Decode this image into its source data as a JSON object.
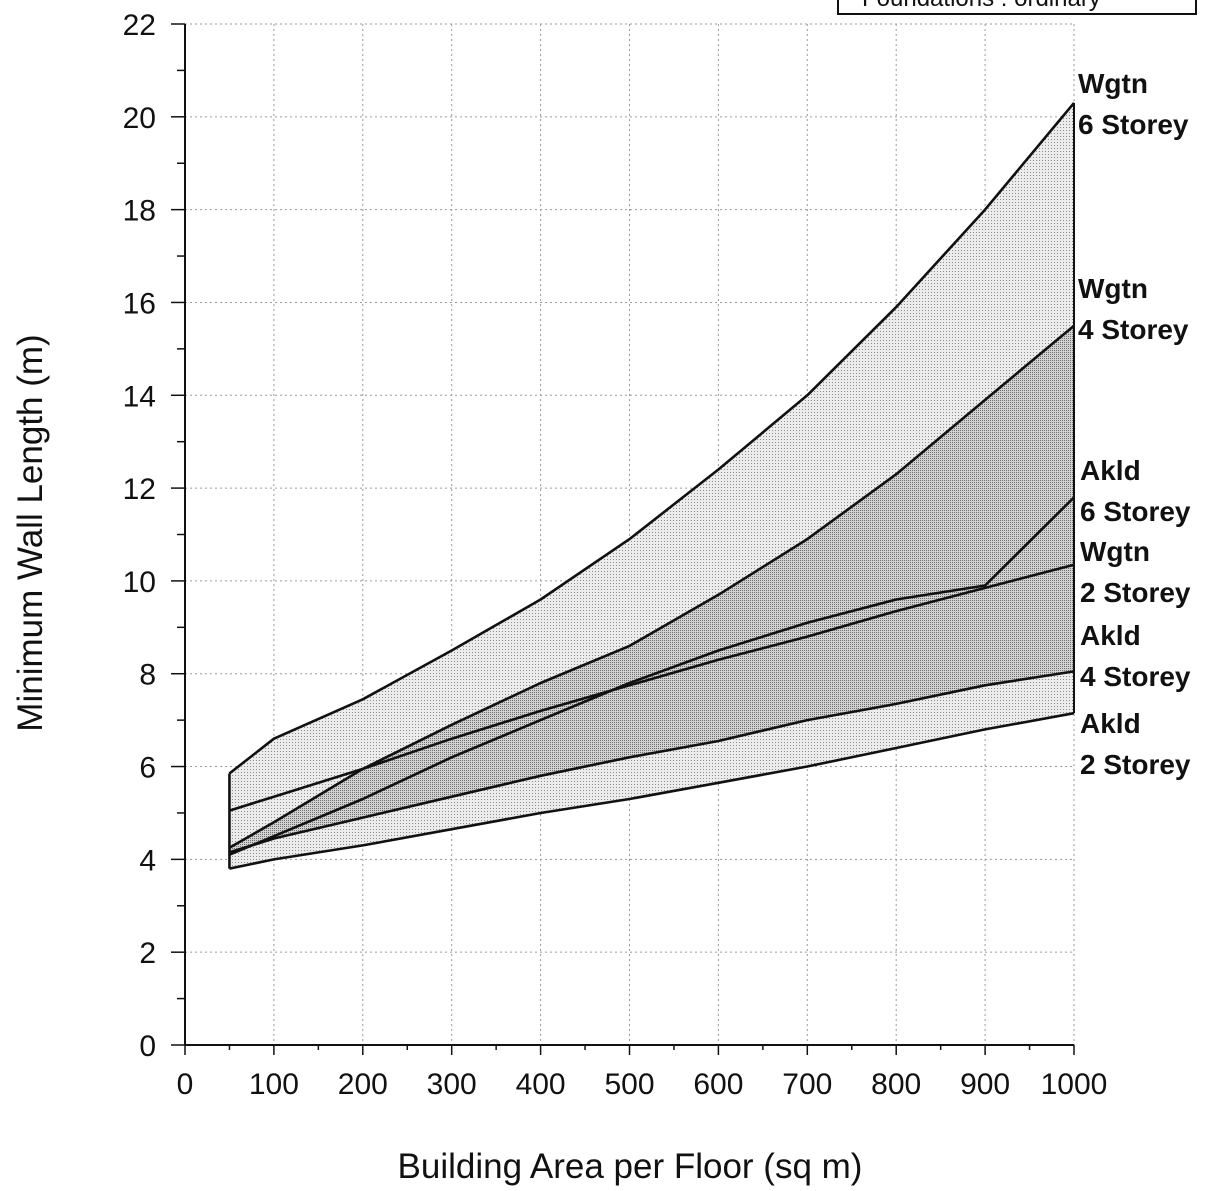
{
  "chart_data": {
    "type": "area",
    "title": "",
    "xlabel": "Building Area per Floor (sq m)",
    "ylabel": "Minimum Wall Length (m)",
    "xlim": [
      0,
      1000
    ],
    "ylim": [
      0,
      22
    ],
    "x_ticks": [
      "0",
      "100",
      "200",
      "300",
      "400",
      "500",
      "600",
      "700",
      "800",
      "900",
      "1000"
    ],
    "y_ticks": [
      "0",
      "2",
      "4",
      "6",
      "8",
      "10",
      "12",
      "14",
      "16",
      "18",
      "20",
      "22"
    ],
    "grid": true,
    "legend_box_text": "Foundations : ordinary",
    "x": [
      50,
      100,
      200,
      300,
      400,
      500,
      600,
      700,
      800,
      900,
      1000
    ],
    "series": [
      {
        "label_line1": "Wgtn",
        "label_line2": "6 Storey",
        "values": [
          5.85,
          6.6,
          7.45,
          8.5,
          9.6,
          10.9,
          12.4,
          14.0,
          15.9,
          18.0,
          20.3
        ]
      },
      {
        "label_line1": "Wgtn",
        "label_line2": "4 Storey",
        "values": [
          4.25,
          4.8,
          5.95,
          6.9,
          7.8,
          8.6,
          9.7,
          10.9,
          12.3,
          13.9,
          15.5
        ]
      },
      {
        "label_line1": "Akld",
        "label_line2": "6 Storey",
        "values": [
          4.1,
          4.5,
          5.3,
          6.2,
          7.0,
          7.8,
          8.5,
          9.1,
          9.6,
          9.9,
          11.8
        ]
      },
      {
        "label_line1": "Wgtn",
        "label_line2": "2 Storey",
        "values": [
          5.05,
          5.35,
          5.95,
          6.6,
          7.2,
          7.75,
          8.3,
          8.8,
          9.35,
          9.85,
          10.35
        ]
      },
      {
        "label_line1": "Akld",
        "label_line2": "4 Storey",
        "values": [
          4.15,
          4.45,
          4.9,
          5.35,
          5.8,
          6.2,
          6.55,
          7.0,
          7.35,
          7.75,
          8.05
        ]
      },
      {
        "label_line1": "Akld",
        "label_line2": "2 Storey",
        "values": [
          3.8,
          4.0,
          4.3,
          4.65,
          5.0,
          5.3,
          5.65,
          6.0,
          6.4,
          6.8,
          7.15
        ]
      }
    ]
  },
  "colors": {
    "band_light": "#e4e4e4",
    "band_dark": "#c6c6c6",
    "line": "#111111",
    "grid": "#9a9a9a"
  }
}
